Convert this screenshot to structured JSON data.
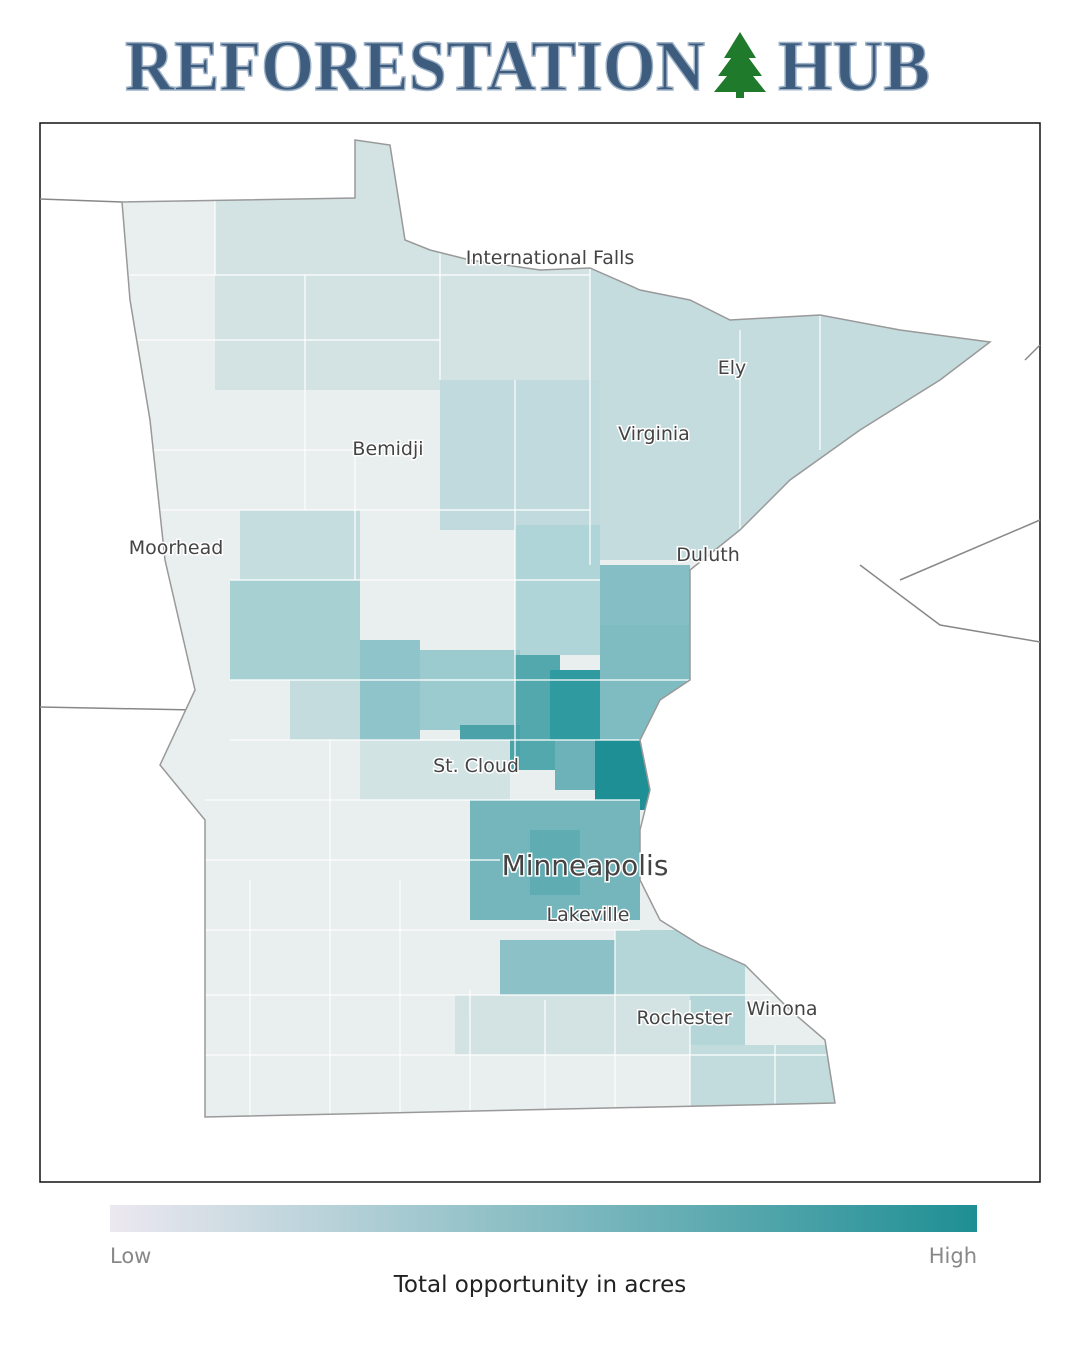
{
  "header": {
    "title_left": "REFORESTATION",
    "title_right": "HUB"
  },
  "map": {
    "cities": [
      "International Falls",
      "Ely",
      "Virginia",
      "Bemidji",
      "Duluth",
      "Moorhead",
      "St. Cloud",
      "Minneapolis",
      "Lakeville",
      "Rochester",
      "Winona"
    ]
  },
  "legend": {
    "low": "Low",
    "high": "High",
    "caption": "Total opportunity in acres"
  }
}
